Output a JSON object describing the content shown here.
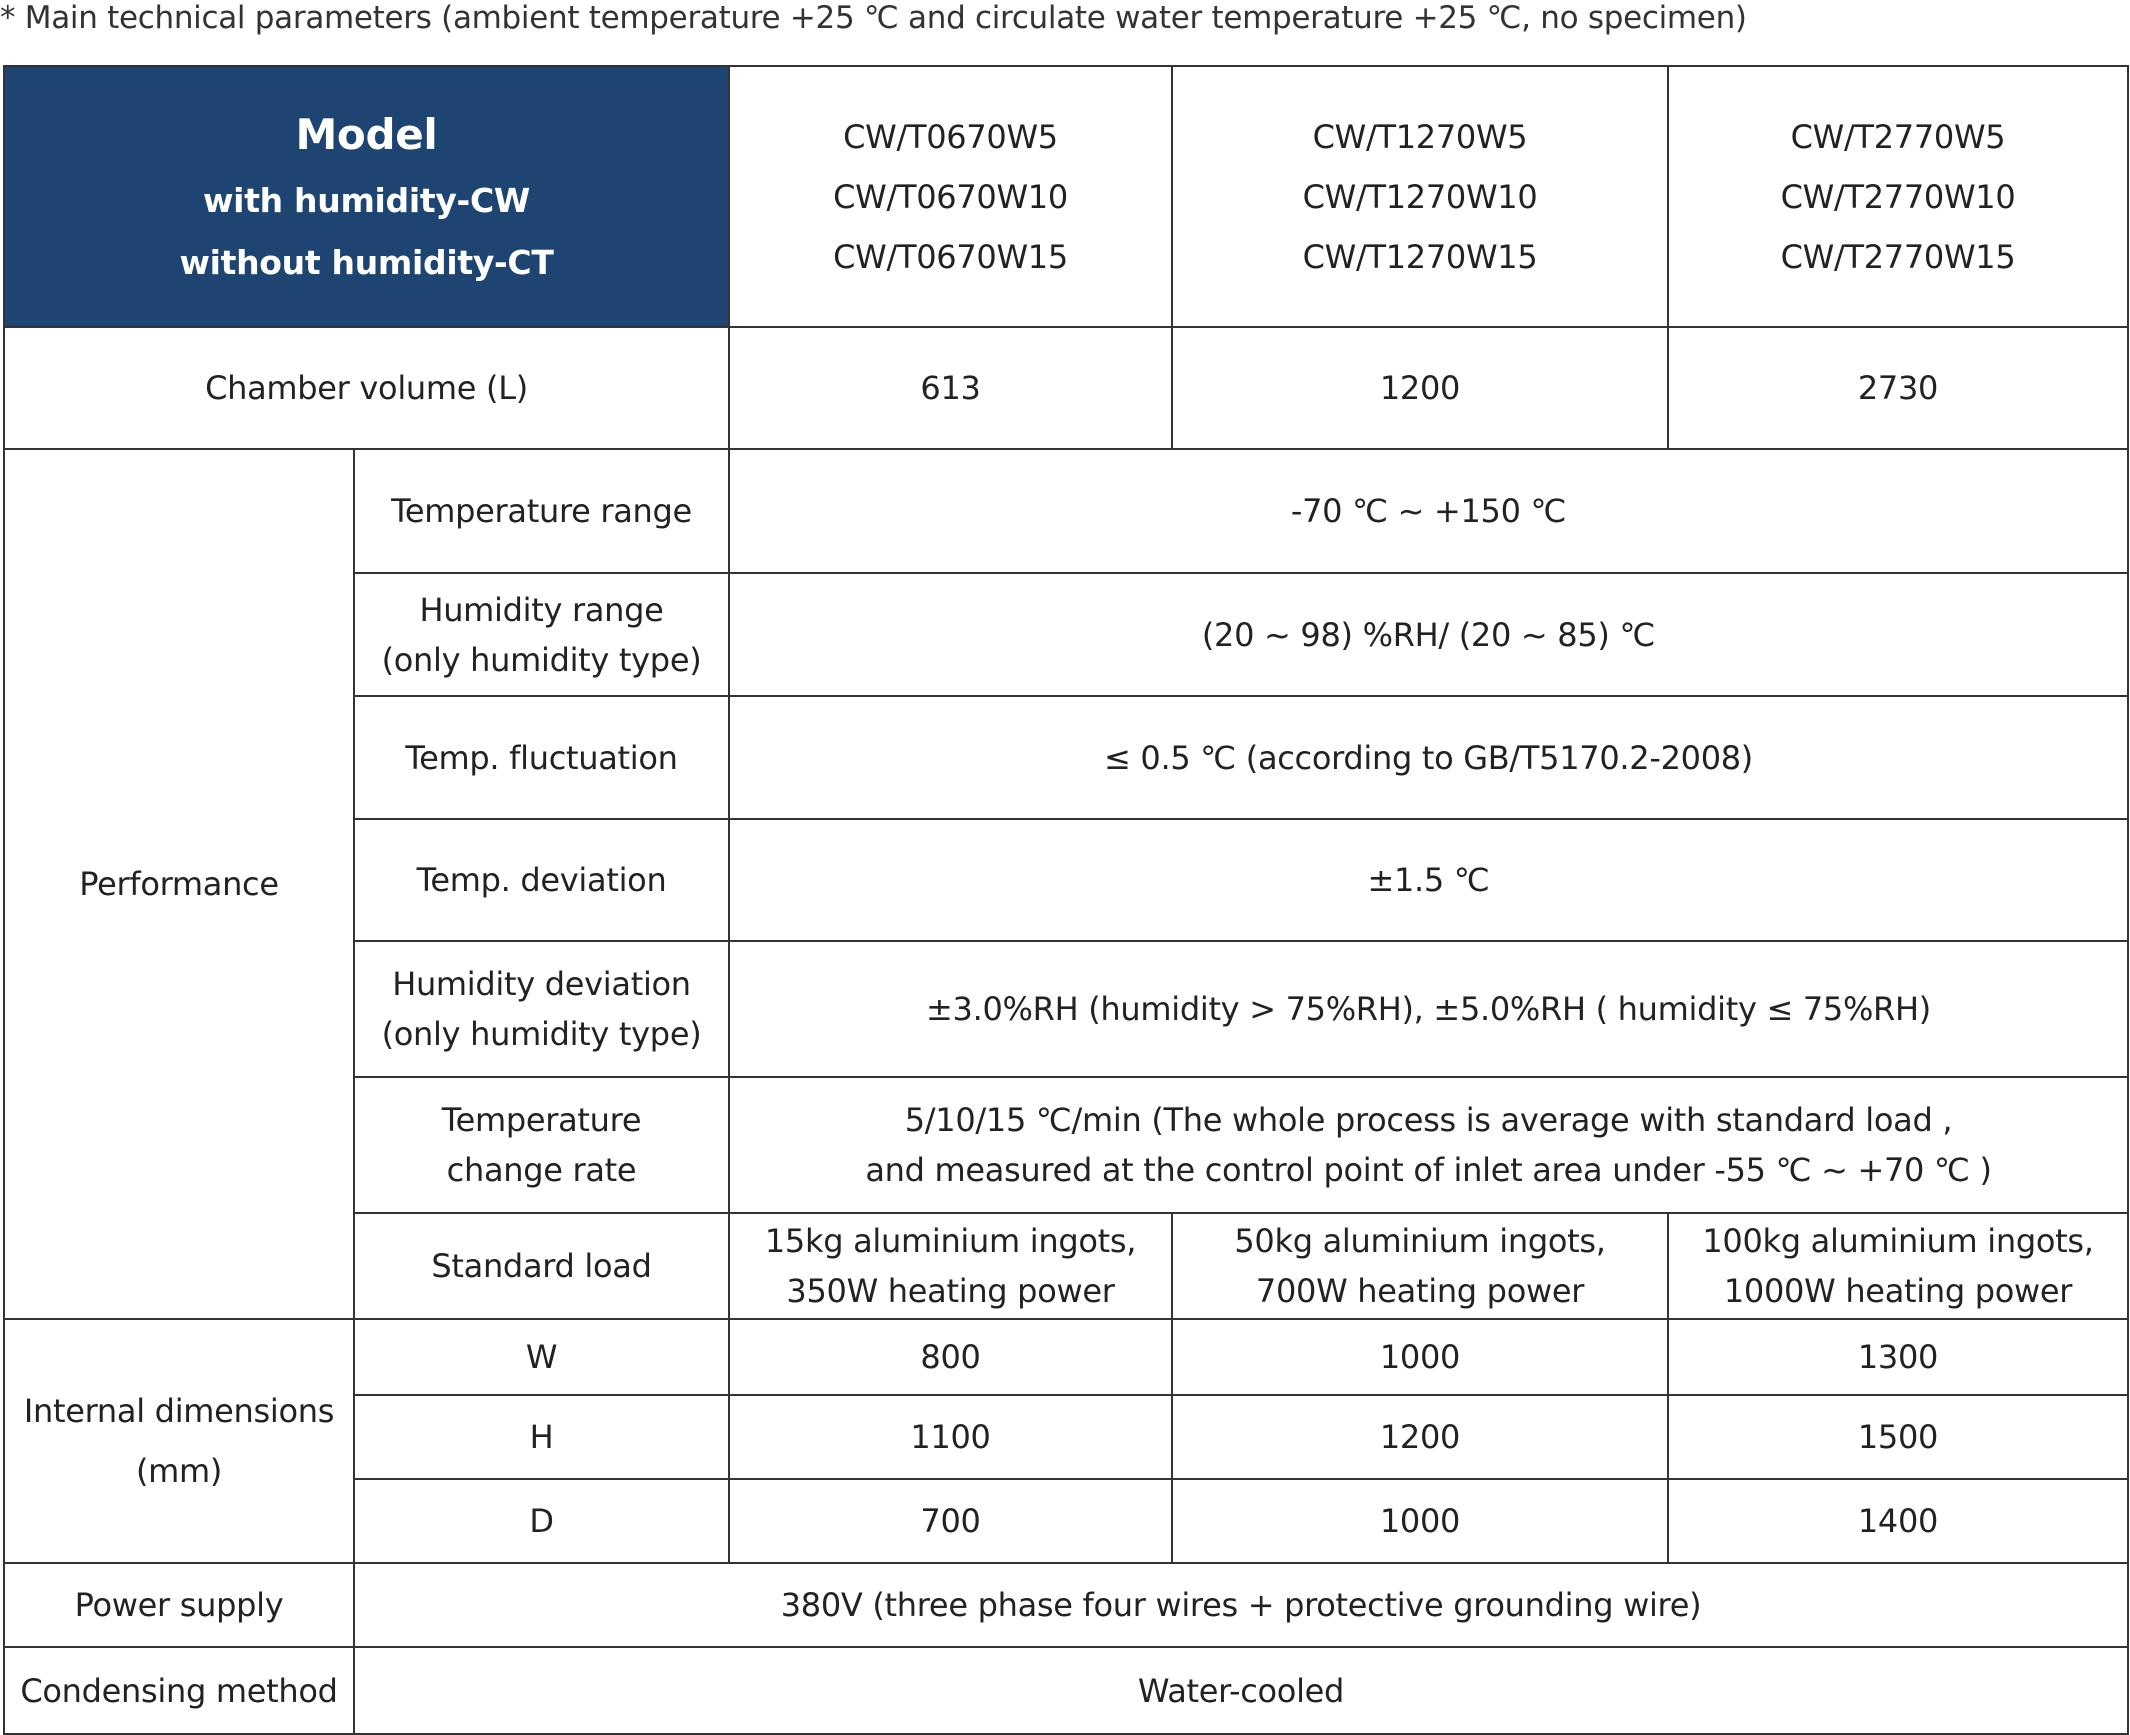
{
  "title": "* Main technical parameters (ambient temperature +25 ℃ and circulate water temperature +25 ℃, no specimen)",
  "header": {
    "model": "Model",
    "with_humidity": "with humidity-CW",
    "without_humidity": "without humidity-CT",
    "columns": [
      [
        "CW/T0670W5",
        "CW/T0670W10",
        "CW/T0670W15"
      ],
      [
        "CW/T1270W5",
        "CW/T1270W10",
        "CW/T1270W15"
      ],
      [
        "CW/T2770W5",
        "CW/T2770W10",
        "CW/T2770W15"
      ]
    ],
    "header_color": "#1e4471"
  },
  "chamber_volume": {
    "label": "Chamber volume (L)",
    "values": [
      "613",
      "1200",
      "2730"
    ]
  },
  "performance": {
    "label": "Performance",
    "temperature_range": {
      "label": "Temperature range",
      "value": "-70 ℃ ~ +150 ℃"
    },
    "humidity_range": {
      "label1": "Humidity range",
      "label2": "(only humidity type)",
      "value": "(20 ~ 98) %RH/ (20 ~ 85) ℃"
    },
    "temp_fluctuation": {
      "label": "Temp. fluctuation",
      "value": "≤ 0.5 ℃ (according to GB/T5170.2-2008)"
    },
    "temp_deviation": {
      "label": "Temp. deviation",
      "value": "±1.5 ℃"
    },
    "humidity_deviation": {
      "label1": "Humidity deviation",
      "label2": "(only humidity type)",
      "value": "±3.0%RH (humidity > 75%RH), ±5.0%RH ( humidity ≤ 75%RH)"
    },
    "temp_change_rate": {
      "label1": "Temperature",
      "label2": "change rate",
      "value1": "5/10/15 ℃/min (The whole process is average with standard load ,",
      "value2": "and measured at the control point of inlet area under -55 ℃ ~ +70 ℃ )"
    },
    "standard_load": {
      "label": "Standard load",
      "values": [
        [
          "15kg aluminium ingots,",
          "350W heating power"
        ],
        [
          "50kg aluminium ingots,",
          "700W heating power"
        ],
        [
          "100kg aluminium ingots,",
          "1000W heating power"
        ]
      ]
    }
  },
  "internal_dimensions": {
    "label1": "Internal dimensions",
    "label2": "(mm)",
    "rows": [
      {
        "label": "W",
        "values": [
          "800",
          "1000",
          "1300"
        ]
      },
      {
        "label": "H",
        "values": [
          "1100",
          "1200",
          "1500"
        ]
      },
      {
        "label": "D",
        "values": [
          "700",
          "1000",
          "1400"
        ]
      }
    ]
  },
  "power_supply": {
    "label": "Power supply",
    "value": "380V (three phase four wires + protective grounding wire)"
  },
  "condensing_method": {
    "label": "Condensing method",
    "value": "Water-cooled"
  }
}
